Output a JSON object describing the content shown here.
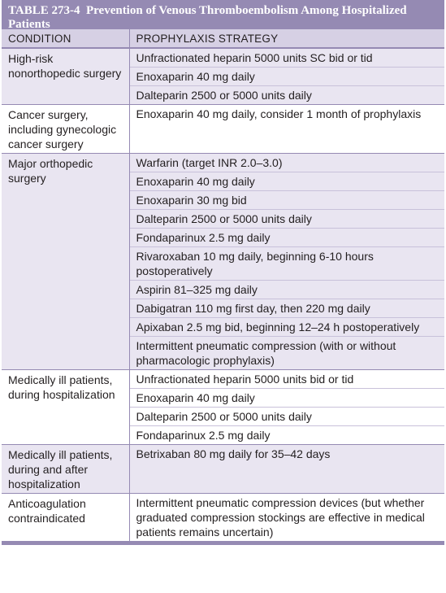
{
  "table": {
    "title_number": "TABLE 273-4",
    "title_text": "Prevention of Venous Thromboembolism Among Hospitalized Patients",
    "headers": {
      "condition": "CONDITION",
      "strategy": "PROPHYLAXIS STRATEGY"
    },
    "rows": [
      {
        "condition": "High-risk nonorthopedic surgery",
        "shaded": true,
        "strategies": [
          "Unfractionated heparin 5000 units SC bid or tid",
          "Enoxaparin 40 mg daily",
          "Dalteparin 2500 or 5000 units daily"
        ]
      },
      {
        "condition": "Cancer surgery, including gynecologic cancer surgery",
        "shaded": false,
        "strategies": [
          "Enoxaparin 40 mg daily, consider 1 month of prophylaxis"
        ]
      },
      {
        "condition": "Major orthopedic surgery",
        "shaded": true,
        "strategies": [
          "Warfarin (target INR 2.0–3.0)",
          "Enoxaparin 40 mg daily",
          "Enoxaparin 30 mg bid",
          "Dalteparin 2500 or 5000 units daily",
          "Fondaparinux 2.5 mg daily",
          "Rivaroxaban 10 mg daily, beginning 6-10 hours postoperatively",
          "Aspirin 81–325 mg daily",
          "Dabigatran 110 mg first day, then 220 mg daily",
          "Apixaban 2.5 mg bid, beginning 12–24 h postoperatively",
          "Intermittent pneumatic compression (with or without pharmacologic prophylaxis)"
        ]
      },
      {
        "condition": "Medically ill patients, during hospitalization",
        "shaded": false,
        "strategies": [
          "Unfractionated heparin 5000 units bid or tid",
          "Enoxaparin 40 mg daily",
          "Dalteparin 2500 or 5000 units daily",
          "Fondaparinux 2.5 mg daily"
        ]
      },
      {
        "condition": "Medically ill patients, during and after hospitalization",
        "shaded": true,
        "strategies": [
          "Betrixaban 80 mg daily for 35–42 days"
        ]
      },
      {
        "condition": "Anticoagulation contraindicated",
        "shaded": false,
        "strategies": [
          "Intermittent pneumatic compression devices (but whether graduated compression stockings are effective in medical patients remains uncertain)"
        ]
      }
    ]
  }
}
